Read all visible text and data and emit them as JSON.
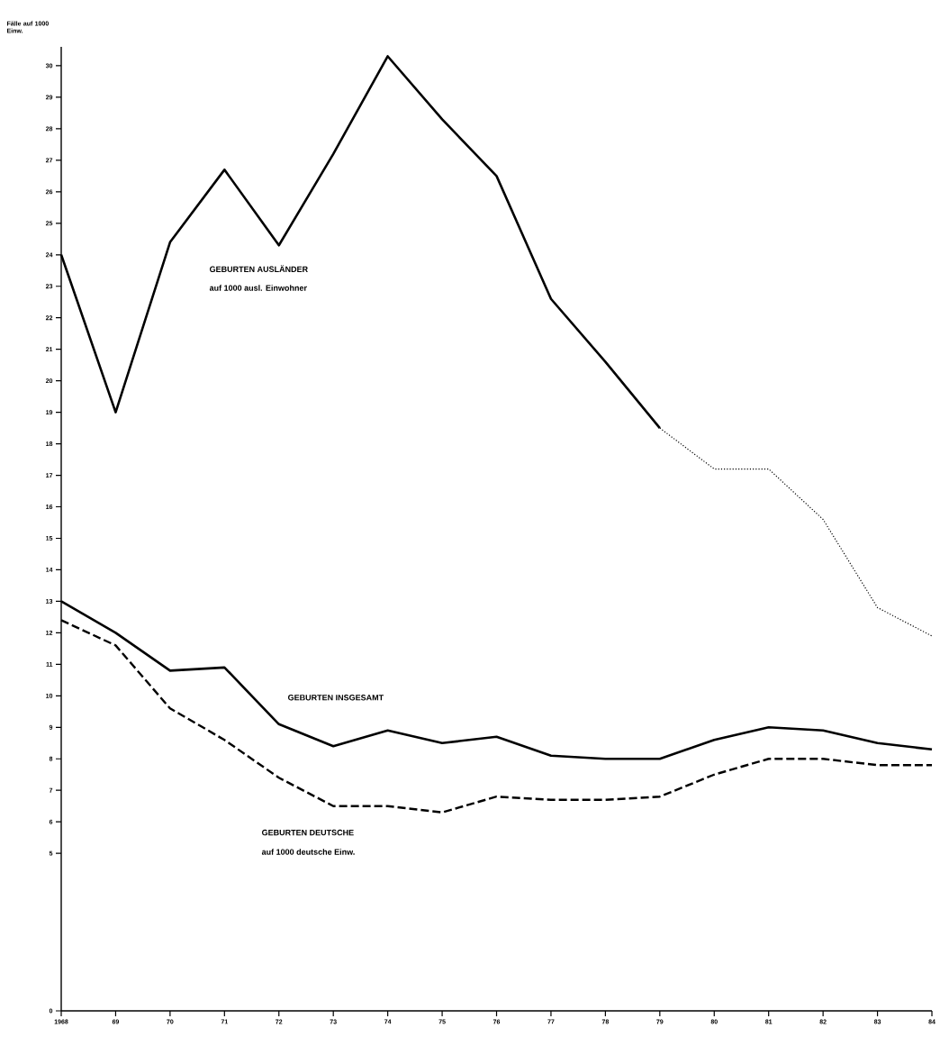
{
  "chart_data": {
    "type": "line",
    "ylabel": "Fälle auf 1000 Einw.",
    "categories": [
      "1968",
      "69",
      "70",
      "71",
      "72",
      "73",
      "74",
      "75",
      "76",
      "77",
      "78",
      "79",
      "80",
      "81",
      "82",
      "83",
      "84"
    ],
    "series": [
      {
        "color": "#000000",
        "line_style": "solid",
        "values": [
          24.0,
          19.0,
          24.4,
          26.7,
          24.3,
          27.2,
          30.3,
          28.3,
          26.5,
          22.6,
          20.6,
          18.5,
          null,
          null,
          null,
          null,
          null
        ]
      },
      {
        "color": "#000000",
        "line_style": "dotted",
        "values": [
          null,
          null,
          null,
          null,
          null,
          null,
          null,
          null,
          null,
          null,
          null,
          18.5,
          17.2,
          17.2,
          15.6,
          12.8,
          11.9
        ]
      },
      {
        "color": "#000000",
        "line_style": "solid",
        "values": [
          13.0,
          12.0,
          10.8,
          10.9,
          9.1,
          8.4,
          8.9,
          8.5,
          8.7,
          8.1,
          8.0,
          8.0,
          8.6,
          9.0,
          8.9,
          8.5,
          8.3
        ]
      },
      {
        "color": "#000000",
        "line_style": "dashed",
        "values": [
          12.4,
          11.6,
          9.6,
          8.6,
          7.4,
          6.5,
          6.5,
          6.3,
          6.8,
          6.7,
          6.7,
          6.8,
          7.5,
          8.0,
          8.0,
          7.8,
          7.8
        ]
      }
    ],
    "ylim": [
      0,
      30.6
    ],
    "yticks": [
      0,
      5,
      6,
      7,
      8,
      9,
      10,
      11,
      12,
      13,
      14,
      15,
      16,
      17,
      18,
      19,
      20,
      21,
      22,
      23,
      24,
      25,
      26,
      27,
      28,
      29,
      30
    ],
    "annotations": [
      "GEBURTEN AUSLÄNDER",
      "auf 1000 ausl. Einwohner",
      "GEBURTEN INSGESAMT",
      "GEBURTEN DEUTSCHE",
      "auf 1000 deutsche Einw."
    ]
  }
}
